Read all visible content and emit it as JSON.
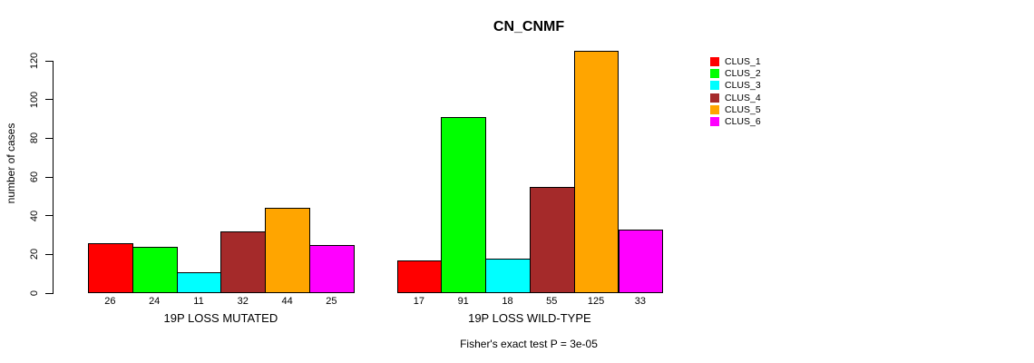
{
  "figure": {
    "title": "CN_CNMF",
    "annotation": "Fisher's exact test P = 3e-05"
  },
  "chart_data": {
    "type": "bar",
    "title": "CN_CNMF",
    "xlabel": "",
    "ylabel": "number of cases",
    "ylim": [
      0,
      120
    ],
    "yticks": [
      0,
      20,
      40,
      60,
      80,
      100,
      120
    ],
    "grid": false,
    "legend_position": "top-right",
    "bar_value_labels": true,
    "categories": [
      "19P LOSS MUTATED",
      "19P LOSS WILD-TYPE"
    ],
    "series": [
      {
        "name": "CLUS_1",
        "color": "#FF0000",
        "values": [
          26,
          17
        ]
      },
      {
        "name": "CLUS_2",
        "color": "#00FF00",
        "values": [
          24,
          91
        ]
      },
      {
        "name": "CLUS_3",
        "color": "#00FFFF",
        "values": [
          11,
          18
        ]
      },
      {
        "name": "CLUS_4",
        "color": "#A52A2A",
        "values": [
          32,
          55
        ]
      },
      {
        "name": "CLUS_5",
        "color": "#FFA500",
        "values": [
          44,
          125
        ]
      },
      {
        "name": "CLUS_6",
        "color": "#FF00FF",
        "values": [
          25,
          33
        ]
      }
    ],
    "annotation": "Fisher's exact test P = 3e-05"
  }
}
